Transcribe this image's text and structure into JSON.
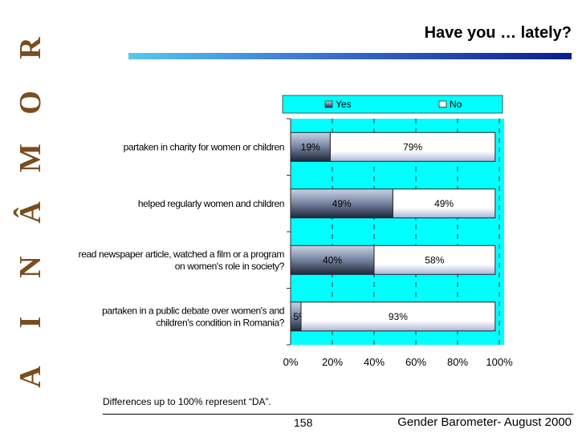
{
  "side_title": [
    "R",
    "O",
    "M",
    "Â",
    "N",
    "I",
    "A"
  ],
  "title": "Have you … lately?",
  "footnote": "Differences up to 100% represent “DA”.",
  "page_number": "158",
  "footer": "Gender Barometer- August 2000",
  "colors": {
    "plot_bg": "#00ffff",
    "yes": "#7d8ca8",
    "no": "#ffffff",
    "title_text": "#7a4d1e"
  },
  "chart_data": {
    "type": "bar",
    "orientation": "horizontal",
    "stacked": true,
    "categories": [
      [
        "partaken in charity for women or children"
      ],
      [
        "helped regularly women and children"
      ],
      [
        "read newspaper article, watched a film or a program",
        "on women's role in society?"
      ],
      [
        "partaken in a public debate over women's and",
        "children's condition in Romania?"
      ]
    ],
    "series": [
      {
        "name": "Yes",
        "values": [
          19,
          49,
          40,
          5
        ],
        "labels": [
          "19%",
          "49%",
          "40%",
          "5%"
        ]
      },
      {
        "name": "No",
        "values": [
          79,
          49,
          58,
          93
        ],
        "labels": [
          "79%",
          "49%",
          "58%",
          "93%"
        ]
      }
    ],
    "xlim": [
      0,
      100
    ],
    "xticks": [
      "0%",
      "20%",
      "40%",
      "60%",
      "80%",
      "100%"
    ],
    "legend": "top",
    "grid": true
  }
}
